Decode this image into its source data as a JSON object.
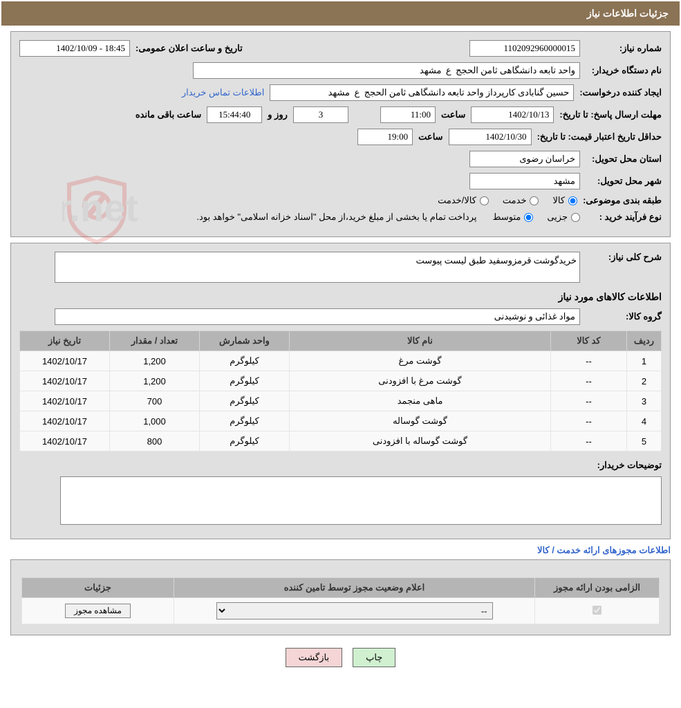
{
  "header": {
    "title": "جزئیات اطلاعات نیاز"
  },
  "info": {
    "need_no_label": "شماره نیاز:",
    "need_no": "1102092960000015",
    "announce_label": "تاریخ و ساعت اعلان عمومی:",
    "announce_value": "18:45 - 1402/10/09",
    "buyer_org_label": "نام دستگاه خریدار:",
    "buyer_org": "واحد تابعه دانشگاهی ثامن الحجج  ع  مشهد",
    "requester_label": "ایجاد کننده درخواست:",
    "requester": "حسین گنابادی کارپرداز واحد تابعه دانشگاهی ثامن الحجج  ع  مشهد",
    "contact_link": "اطلاعات تماس خریدار",
    "deadline_label": "مهلت ارسال پاسخ: تا تاریخ:",
    "deadline_date": "1402/10/13",
    "time_label": "ساعت",
    "deadline_time": "11:00",
    "days_remain": "3",
    "days_and": "روز و",
    "time_remain": "15:44:40",
    "remain_suffix": "ساعت باقی مانده",
    "validity_label": "حداقل تاریخ اعتبار قیمت: تا تاریخ:",
    "validity_date": "1402/10/30",
    "validity_time": "19:00",
    "province_label": "استان محل تحویل:",
    "province": "خراسان رضوی",
    "city_label": "شهر محل تحویل:",
    "city": "مشهد",
    "category_label": "طبقه بندی موضوعی:",
    "cat_goods": "کالا",
    "cat_service": "خدمت",
    "cat_both": "کالا/خدمت",
    "process_label": "نوع فرآیند خرید :",
    "proc_partial": "جزیی",
    "proc_medium": "متوسط",
    "process_note": "پرداخت تمام یا بخشی از مبلغ خرید،از محل \"اسناد خزانه اسلامی\" خواهد بود."
  },
  "desc": {
    "label": "شرح کلی نیاز:",
    "text": "خریدگوشت قرمزوسفید طبق لیست پیوست"
  },
  "goods_section": "اطلاعات کالاهای مورد نیاز",
  "group": {
    "label": "گروه کالا:",
    "value": "مواد غذائی و نوشیدنی"
  },
  "table": {
    "headers": {
      "row": "ردیف",
      "code": "کد کالا",
      "name": "نام کالا",
      "unit": "واحد شمارش",
      "qty": "تعداد / مقدار",
      "date": "تاریخ نیاز"
    },
    "rows": [
      {
        "n": "1",
        "code": "--",
        "name": "گوشت مرغ",
        "unit": "کیلوگرم",
        "qty": "1,200",
        "date": "1402/10/17"
      },
      {
        "n": "2",
        "code": "--",
        "name": "گوشت مرغ با افزودنی",
        "unit": "کیلوگرم",
        "qty": "1,200",
        "date": "1402/10/17"
      },
      {
        "n": "3",
        "code": "--",
        "name": "ماهی منجمد",
        "unit": "کیلوگرم",
        "qty": "700",
        "date": "1402/10/17"
      },
      {
        "n": "4",
        "code": "--",
        "name": "گوشت گوساله",
        "unit": "کیلوگرم",
        "qty": "1,000",
        "date": "1402/10/17"
      },
      {
        "n": "5",
        "code": "--",
        "name": "گوشت گوساله با افزودنی",
        "unit": "کیلوگرم",
        "qty": "800",
        "date": "1402/10/17"
      }
    ]
  },
  "buyer_notes_label": "توضیحات خریدار:",
  "license_caption": "اطلاعات مجوزهای ارائه خدمت / کالا",
  "license_table": {
    "h_mandatory": "الزامی بودن ارائه مجوز",
    "h_status": "اعلام وضعیت مجوز توسط تامین کننده",
    "h_detail": "جزئیات",
    "select_placeholder": "--",
    "detail_btn": "مشاهده مجوز"
  },
  "buttons": {
    "print": "چاپ",
    "back": "بازگشت"
  },
  "colors": {
    "header_bg": "#8B7355",
    "panel_bg": "#e0e0e0",
    "th_bg": "#b5b5b5",
    "link": "#3366cc"
  },
  "watermark": {
    "text": "AriaTender.net",
    "shield_color": "#d9534f"
  }
}
